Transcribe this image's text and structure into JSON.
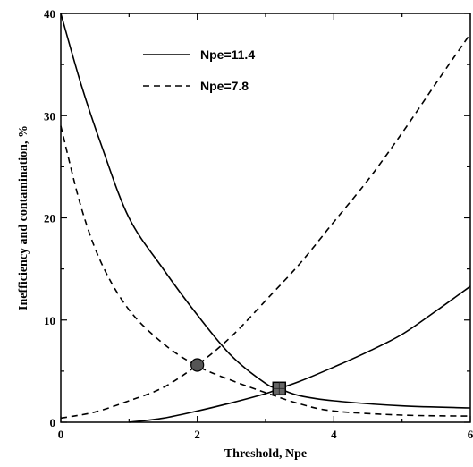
{
  "chart_data": {
    "type": "line",
    "xlabel": "Threshold, Npe",
    "ylabel": "Inefficiency and contamination, %",
    "xlim": [
      0,
      6
    ],
    "ylim": [
      0,
      40
    ],
    "x_ticks": [
      "0",
      "2",
      "4",
      "6"
    ],
    "y_ticks": [
      "0",
      "10",
      "20",
      "30",
      "40"
    ],
    "grid": false,
    "legend_position": "top-left",
    "series": [
      {
        "name": "Npe=11.4",
        "style": "solid",
        "curves": [
          {
            "x": [
              0,
              0.3,
              0.6,
              1.0,
              1.5,
              2.0,
              2.5,
              3.0,
              3.2,
              3.5,
              4.0,
              5.0,
              6.0
            ],
            "y": [
              40,
              33,
              27,
              20,
              15,
              10.5,
              6.5,
              3.8,
              3.3,
              2.6,
              2.1,
              1.6,
              1.4
            ]
          },
          {
            "x": [
              1.0,
              1.5,
              2.0,
              2.5,
              3.0,
              3.2,
              3.5,
              4.0,
              4.5,
              5.0,
              5.5,
              6.0
            ],
            "y": [
              0,
              0.4,
              1.1,
              1.9,
              2.8,
              3.3,
              4.0,
              5.4,
              6.9,
              8.6,
              10.9,
              13.3
            ]
          }
        ]
      },
      {
        "name": "Npe=7.8",
        "style": "dashed",
        "curves": [
          {
            "x": [
              0,
              0.3,
              0.6,
              1.0,
              1.5,
              2.0,
              2.5,
              3.0,
              3.5,
              4.0,
              5.0,
              6.0
            ],
            "y": [
              29,
              21,
              15.5,
              11,
              7.7,
              5.5,
              4.1,
              2.9,
              1.8,
              1.1,
              0.7,
              0.6
            ]
          },
          {
            "x": [
              0,
              0.5,
              1.0,
              1.5,
              2.0,
              2.5,
              3.0,
              3.5,
              4.0,
              4.5,
              5.0,
              5.5,
              6.0
            ],
            "y": [
              0.4,
              1.0,
              2.1,
              3.4,
              5.6,
              8.4,
              11.9,
              15.5,
              19.6,
              23.7,
              28.3,
              33.2,
              38.0
            ]
          }
        ]
      }
    ],
    "markers": [
      {
        "shape": "circle",
        "x": 2.0,
        "y": 5.6
      },
      {
        "shape": "square",
        "x": 3.2,
        "y": 3.3
      }
    ]
  }
}
